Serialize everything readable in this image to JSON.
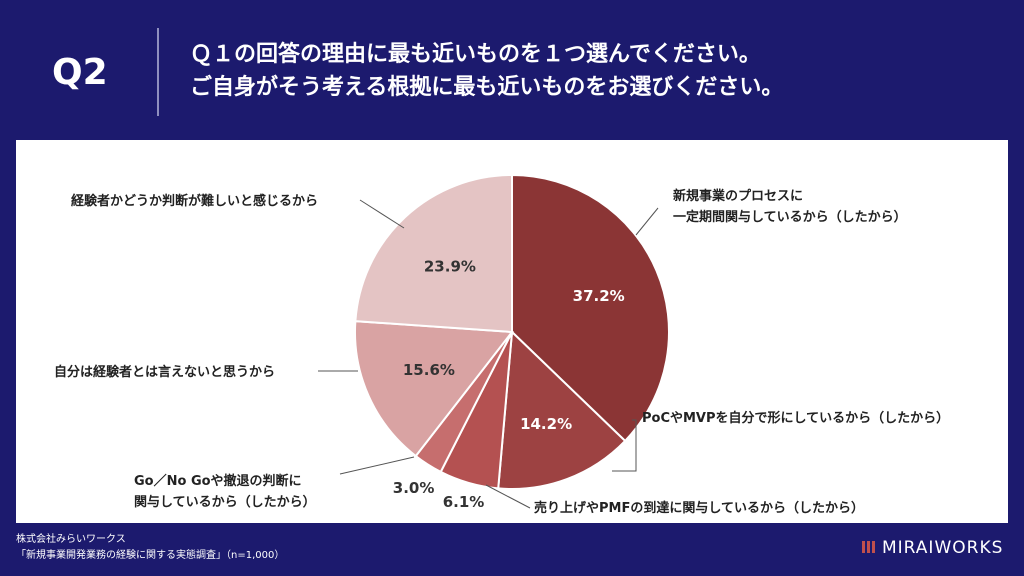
{
  "question": {
    "number": "Q2",
    "line1": "Ｑ１の回答の理由に最も近いものを１つ選んでください。",
    "line2": "ご自身がそう考える根拠に最も近いものをお選びください。"
  },
  "chart_data": {
    "type": "pie",
    "start": "12 o'clock, clockwise",
    "colors": [
      "#8b3535",
      "#9d4242",
      "#b45151",
      "#c66e6e",
      "#d9a3a3",
      "#e4c4c4"
    ],
    "slices": [
      {
        "label": "新規事業のプロセスに一定期間関与しているから（したから）",
        "label_lines": [
          "新規事業のプロセスに",
          "一定期間関与しているから（したから）"
        ],
        "value": 37.2,
        "value_text": "37.2%"
      },
      {
        "label": "PoCやMVPを自分で形にしているから（したから）",
        "label_lines": [
          "PoCやMVPを自分で形にしているから（したから）"
        ],
        "value": 14.2,
        "value_text": "14.2%"
      },
      {
        "label": "売り上げやPMFの到達に関与しているから（したから）",
        "label_lines": [
          "売り上げやPMFの到達に関与しているから（したから）"
        ],
        "value": 6.1,
        "value_text": "6.1%"
      },
      {
        "label": "Go／No Goや撤退の判断に関与しているから（したから）",
        "label_lines": [
          "Go／No Goや撤退の判断に",
          "関与しているから（したから）"
        ],
        "value": 3.0,
        "value_text": "3.0%"
      },
      {
        "label": "自分は経験者とは言えないと思うから",
        "label_lines": [
          "自分は経験者とは言えないと思うから"
        ],
        "value": 15.6,
        "value_text": "15.6%"
      },
      {
        "label": "経験者かどうか判断が難しいと感じるから",
        "label_lines": [
          "経験者かどうか判断が難しいと感じるから"
        ],
        "value": 23.9,
        "value_text": "23.9%"
      }
    ]
  },
  "footer": {
    "company": "株式会社みらいワークス",
    "survey": "「新規事業開発業務の経験に関する実態調査」（n=1,000）"
  },
  "logo": {
    "text": "MIRAIWORKS"
  }
}
